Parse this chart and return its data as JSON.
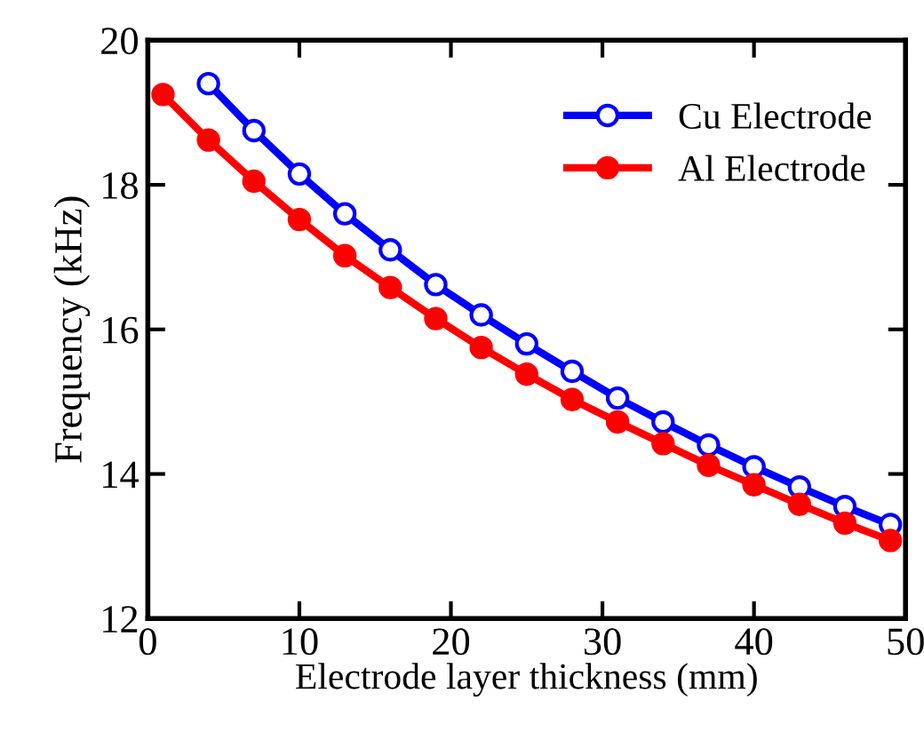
{
  "chart_data": {
    "type": "line",
    "xlabel": "Electrode layer thickness (mm)",
    "ylabel": "Frequency (kHz)",
    "x": [
      1,
      4,
      7,
      10,
      13,
      16,
      19,
      22,
      25,
      28,
      31,
      34,
      37,
      40,
      43,
      46,
      49
    ],
    "series": [
      {
        "name": "Cu Electrode",
        "color": "#0000ff",
        "marker": "circle",
        "values": [
          null,
          19.4,
          18.75,
          18.15,
          17.6,
          17.1,
          16.62,
          16.2,
          15.8,
          15.42,
          15.05,
          14.72,
          14.4,
          14.1,
          13.82,
          13.55,
          13.3
        ]
      },
      {
        "name": "Al Electrode",
        "color": "#ff0000",
        "marker": "circle",
        "values": [
          19.25,
          18.62,
          18.05,
          17.52,
          17.02,
          16.58,
          16.15,
          15.75,
          15.38,
          15.03,
          14.72,
          14.42,
          14.12,
          13.85,
          13.58,
          13.32,
          13.08
        ]
      }
    ],
    "xlim": [
      0,
      50
    ],
    "ylim": [
      12,
      20
    ],
    "xticks": [
      0,
      10,
      20,
      30,
      40,
      50
    ],
    "yticks": [
      12,
      14,
      16,
      18,
      20
    ],
    "grid": false,
    "legend": "top right",
    "line_style": "solid"
  }
}
